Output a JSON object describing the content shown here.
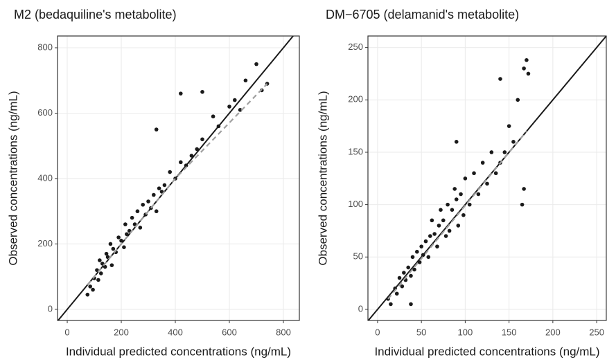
{
  "chart_data": [
    {
      "type": "scatter",
      "title": "M2 (bedaquiline's metabolite)",
      "x_label": "Individual predicted concentrations (ng/mL)",
      "y_label": "Observed concentrations (ng/mL)",
      "xlim": [
        -36,
        859
      ],
      "ylim": [
        -34,
        836
      ],
      "xticks": [
        0,
        200,
        400,
        600,
        800
      ],
      "yticks": [
        0,
        200,
        400,
        600,
        800
      ],
      "grid": true,
      "color": "#1a1a1a",
      "x": [
        75,
        85,
        95,
        100,
        110,
        115,
        120,
        125,
        130,
        140,
        145,
        150,
        160,
        165,
        170,
        180,
        190,
        200,
        210,
        215,
        220,
        230,
        240,
        250,
        260,
        270,
        280,
        290,
        300,
        310,
        320,
        330,
        340,
        350,
        360,
        380,
        400,
        420,
        440,
        460,
        480,
        500,
        540,
        560,
        600,
        620,
        640,
        660,
        700,
        720,
        740,
        420,
        330,
        500
      ],
      "values": [
        45,
        70,
        60,
        95,
        120,
        90,
        150,
        110,
        140,
        130,
        170,
        160,
        200,
        135,
        185,
        175,
        220,
        210,
        190,
        260,
        230,
        240,
        280,
        260,
        300,
        250,
        320,
        290,
        330,
        310,
        350,
        300,
        370,
        360,
        380,
        420,
        400,
        450,
        440,
        470,
        490,
        520,
        590,
        560,
        620,
        640,
        610,
        700,
        750,
        670,
        690,
        660,
        550,
        665
      ],
      "trend": {
        "color": "#a0a0a0",
        "x": [
          75,
          400,
          740
        ],
        "values": [
          75,
          400,
          690
        ]
      }
    },
    {
      "type": "scatter",
      "title": "DM−6705 (delamanid's metabolite)",
      "x_label": "Individual predicted concentrations (ng/mL)",
      "y_label": "Observed concentrations (ng/mL)",
      "xlim": [
        -11,
        261
      ],
      "ylim": [
        -10.6,
        261
      ],
      "xticks": [
        0,
        50,
        100,
        150,
        200,
        250
      ],
      "yticks": [
        0,
        50,
        100,
        150,
        200,
        250
      ],
      "grid": true,
      "color": "#1a1a1a",
      "x": [
        12,
        15,
        20,
        22,
        25,
        28,
        30,
        32,
        35,
        38,
        40,
        42,
        45,
        48,
        50,
        52,
        55,
        58,
        60,
        62,
        65,
        68,
        70,
        72,
        75,
        78,
        80,
        82,
        85,
        88,
        90,
        92,
        95,
        98,
        100,
        105,
        110,
        115,
        120,
        125,
        130,
        135,
        140,
        145,
        150,
        155,
        160,
        165,
        167,
        167,
        170,
        172,
        140,
        38,
        90
      ],
      "values": [
        10,
        5,
        20,
        15,
        30,
        22,
        35,
        28,
        40,
        32,
        50,
        38,
        55,
        45,
        60,
        52,
        65,
        50,
        70,
        85,
        72,
        60,
        80,
        95,
        85,
        70,
        100,
        75,
        95,
        115,
        105,
        80,
        110,
        90,
        125,
        100,
        130,
        110,
        140,
        120,
        150,
        130,
        220,
        150,
        175,
        160,
        200,
        100,
        115,
        230,
        238,
        225,
        140,
        5,
        160
      ],
      "trend": {
        "color": "#a0a0a0",
        "x": [
          12,
          170
        ],
        "values": [
          10,
          170
        ]
      }
    }
  ]
}
